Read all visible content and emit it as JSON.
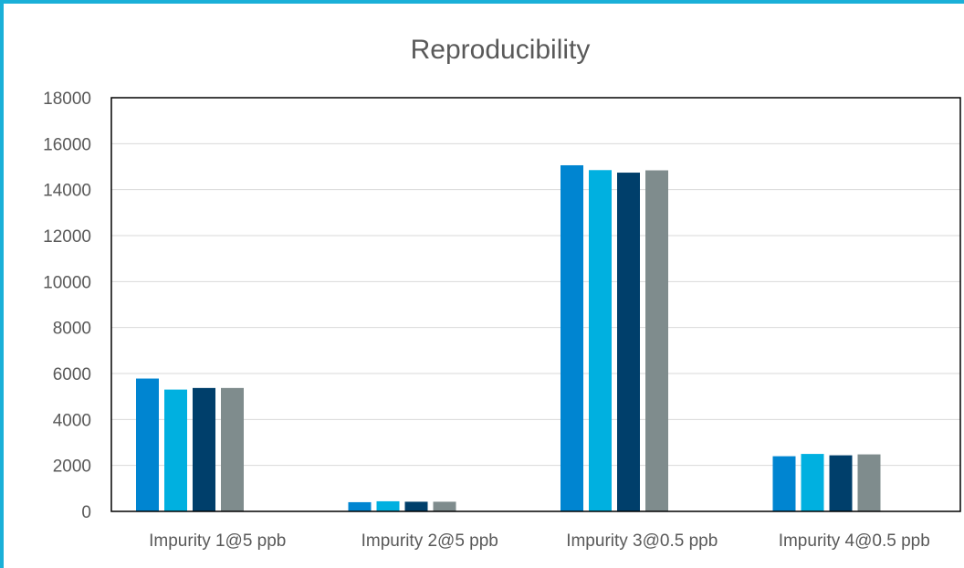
{
  "chart_data": {
    "type": "bar",
    "title": "Reproducibility",
    "xlabel": "",
    "ylabel": "",
    "categories": [
      "Impurity 1@5 ppb",
      "Impurity 2@5 ppb",
      "Impurity 3@0.5 ppb",
      "Impurity 4@0.5 ppb"
    ],
    "series": [
      {
        "color": "#0085d1",
        "values": [
          5780,
          400,
          15060,
          2400
        ]
      },
      {
        "color": "#00b0e0",
        "values": [
          5300,
          440,
          14850,
          2500
        ]
      },
      {
        "color": "#003f6b",
        "values": [
          5370,
          420,
          14740,
          2440
        ]
      },
      {
        "color": "#7f8c8d",
        "values": [
          5370,
          420,
          14840,
          2480
        ]
      }
    ],
    "ylim": [
      0,
      18000
    ],
    "yticks": [
      0,
      2000,
      4000,
      6000,
      8000,
      10000,
      12000,
      14000,
      16000,
      18000
    ],
    "grid": true,
    "legend": "none"
  },
  "colors": {
    "frame": "#1ab0d8",
    "grid": "#d9d9d9",
    "text": "#595959"
  }
}
